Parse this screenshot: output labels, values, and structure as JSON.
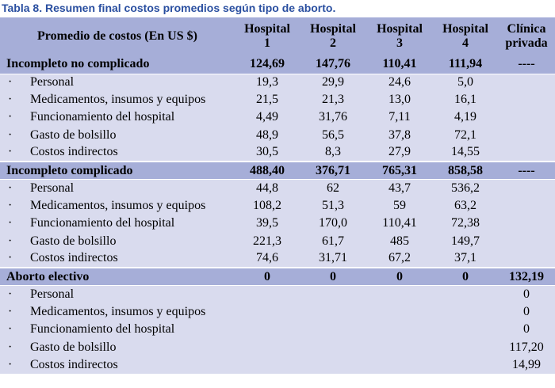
{
  "caption": "Tabla 8. Resumen final costos promedios según tipo de aborto.",
  "header": {
    "label": "Promedio de costos (En US $)",
    "columns": [
      {
        "line1": "Hospital",
        "line2": "1"
      },
      {
        "line1": "Hospital",
        "line2": "2"
      },
      {
        "line1": "Hospital",
        "line2": "3"
      },
      {
        "line1": "Hospital",
        "line2": "4"
      },
      {
        "line1": "Clínica",
        "line2": "privada"
      }
    ]
  },
  "bullet": "·",
  "sections": [
    {
      "title": "Incompleto no complicado",
      "totals": [
        "124,69",
        "147,76",
        "110,41",
        "111,94",
        "----"
      ],
      "rows": [
        {
          "label": "Personal",
          "values": [
            "19,3",
            "29,9",
            "24,6",
            "5,0",
            ""
          ]
        },
        {
          "label": "Medicamentos, insumos y equipos",
          "values": [
            "21,5",
            "21,3",
            "13,0",
            "16,1",
            ""
          ]
        },
        {
          "label": "Funcionamiento del hospital",
          "values": [
            "4,49",
            "31,76",
            "7,11",
            "4,19",
            ""
          ]
        },
        {
          "label": "Gasto de bolsillo",
          "values": [
            "48,9",
            "56,5",
            "37,8",
            "72,1",
            ""
          ]
        },
        {
          "label": "Costos indirectos",
          "values": [
            "30,5",
            "8,3",
            "27,9",
            "14,55",
            ""
          ]
        }
      ]
    },
    {
      "title": "Incompleto complicado",
      "totals": [
        "488,40",
        "376,71",
        "765,31",
        "858,58",
        "----"
      ],
      "rows": [
        {
          "label": "Personal",
          "values": [
            "44,8",
            "62",
            "43,7",
            "536,2",
            ""
          ]
        },
        {
          "label": "Medicamentos, insumos y equipos",
          "values": [
            "108,2",
            "51,3",
            "59",
            "63,2",
            ""
          ]
        },
        {
          "label": "Funcionamiento del hospital",
          "values": [
            "39,5",
            "170,0",
            "110,41",
            "72,38",
            ""
          ]
        },
        {
          "label": "Gasto de bolsillo",
          "values": [
            "221,3",
            "61,7",
            "485",
            "149,7",
            ""
          ]
        },
        {
          "label": "Costos indirectos",
          "values": [
            "74,6",
            "31,71",
            "67,2",
            "37,1",
            ""
          ]
        }
      ]
    },
    {
      "title": "Aborto electivo",
      "totals": [
        "0",
        "0",
        "0",
        "0",
        "132,19"
      ],
      "rows": [
        {
          "label": "Personal",
          "values": [
            "",
            "",
            "",
            "",
            "0"
          ]
        },
        {
          "label": "Medicamentos, insumos y equipos",
          "values": [
            "",
            "",
            "",
            "",
            "0"
          ]
        },
        {
          "label": "Funcionamiento del hospital",
          "values": [
            "",
            "",
            "",
            "",
            "0"
          ]
        },
        {
          "label": "Gasto de bolsillo",
          "values": [
            "",
            "",
            "",
            "",
            "117,20"
          ]
        },
        {
          "label": "Costos indirectos",
          "values": [
            "",
            "",
            "",
            "",
            "14,99"
          ]
        }
      ]
    }
  ]
}
